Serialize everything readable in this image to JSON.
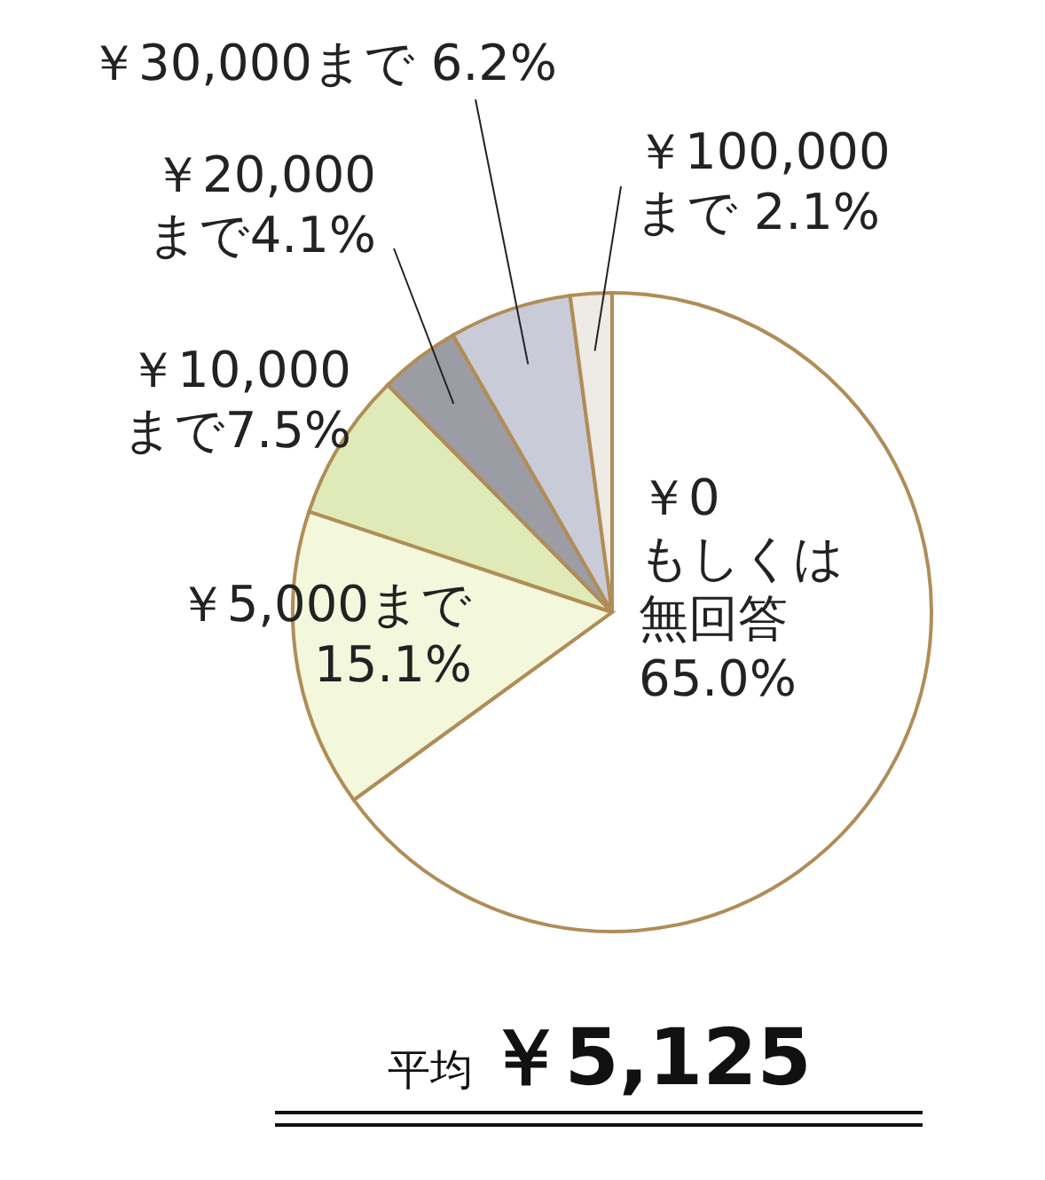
{
  "chart_data": {
    "type": "pie",
    "categories": [
      "￥0もしくは無回答",
      "￥5,000まで",
      "￥10,000まで",
      "￥20,000まで",
      "￥30,000まで",
      "￥100,000まで"
    ],
    "values": [
      65.0,
      15.1,
      7.5,
      4.1,
      6.2,
      2.1
    ],
    "value_labels": [
      "65.0%",
      "15.1%",
      "7.5%",
      "4.1%",
      "6.2%",
      "2.1%"
    ],
    "colors": [
      "#ffffff",
      "#f3f7dc",
      "#dfeab8",
      "#9c9ca4",
      "#c9cbd8",
      "#eeeae4"
    ],
    "annotations": [
      "平均 ￥5,125"
    ]
  }
}
